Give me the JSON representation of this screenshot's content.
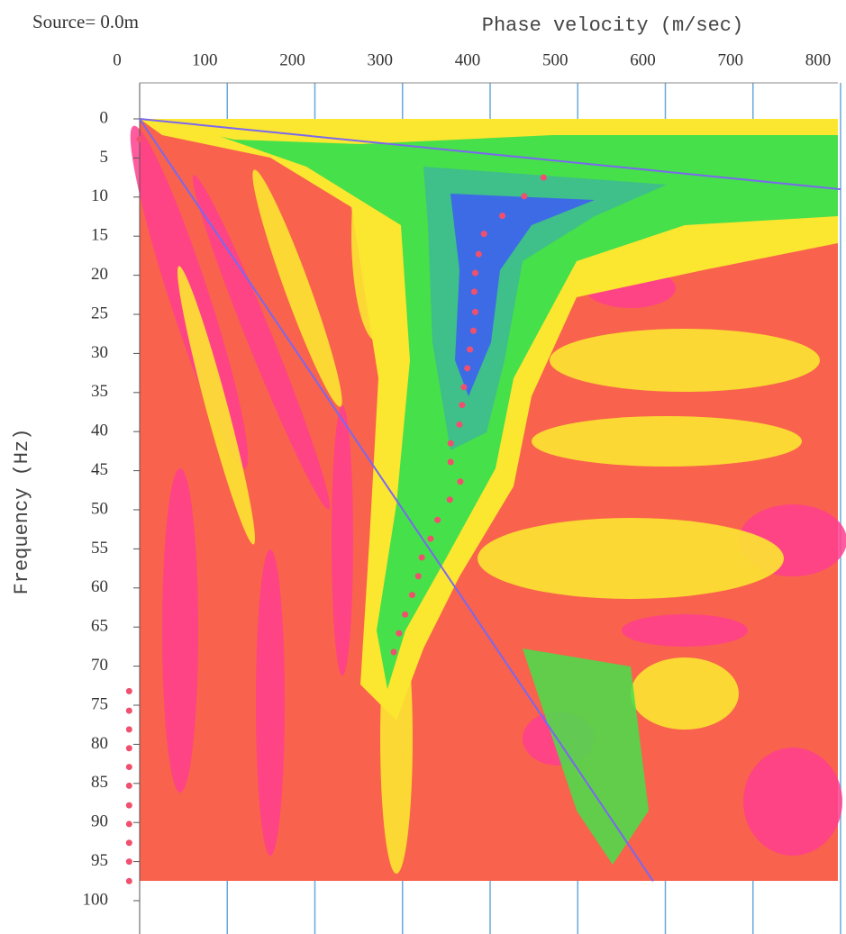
{
  "chart_data": {
    "type": "scatter",
    "annotation": "Source= 0.0m",
    "x_label": "Phase velocity (m/sec)",
    "y_label": "Frequency (Hz)",
    "xlim": [
      0,
      800
    ],
    "xticks": [
      0,
      100,
      200,
      300,
      400,
      500,
      600,
      700,
      800
    ],
    "ylim": [
      0,
      100
    ],
    "yticks": [
      0,
      5,
      10,
      15,
      20,
      25,
      30,
      35,
      40,
      45,
      50,
      55,
      60,
      65,
      70,
      75,
      80,
      85,
      90,
      95,
      100
    ],
    "y_inverted": true,
    "x_axis_position": "top",
    "grid": true,
    "series": [
      {
        "type": "scatter",
        "color": "#f0506e",
        "x": [
          461,
          439,
          414,
          393,
          387,
          383,
          382,
          383,
          381,
          377,
          374,
          370,
          368,
          365,
          355,
          355,
          366,
          354,
          340,
          332,
          322,
          318,
          311,
          303,
          296,
          290
        ],
        "values": [
          7.5,
          9.9,
          12.4,
          14.7,
          17.3,
          19.7,
          22.1,
          24.7,
          27.1,
          29.5,
          31.9,
          34.3,
          36.6,
          39.1,
          41.5,
          43.9,
          46.4,
          48.7,
          51.3,
          53.7,
          56.1,
          58.5,
          60.9,
          63.4,
          65.8,
          68.2
        ]
      },
      {
        "type": "scatter",
        "color": "#f0506e",
        "x": [
          0,
          -12,
          -12,
          -12,
          -12,
          -12,
          -12,
          -12,
          -12,
          -12,
          -12,
          -12
        ],
        "values": [
          2.6,
          73.2,
          75.7,
          78.1,
          80.5,
          82.9,
          85.3,
          87.8,
          90.2,
          92.6,
          95.0,
          97.5
        ]
      },
      {
        "type": "line",
        "color": "#7b68ee",
        "x": [
          0,
          800
        ],
        "values": [
          0,
          9
        ]
      },
      {
        "type": "line",
        "color": "#7b68ee",
        "x": [
          0,
          586
        ],
        "values": [
          0,
          97.5
        ]
      }
    ]
  }
}
